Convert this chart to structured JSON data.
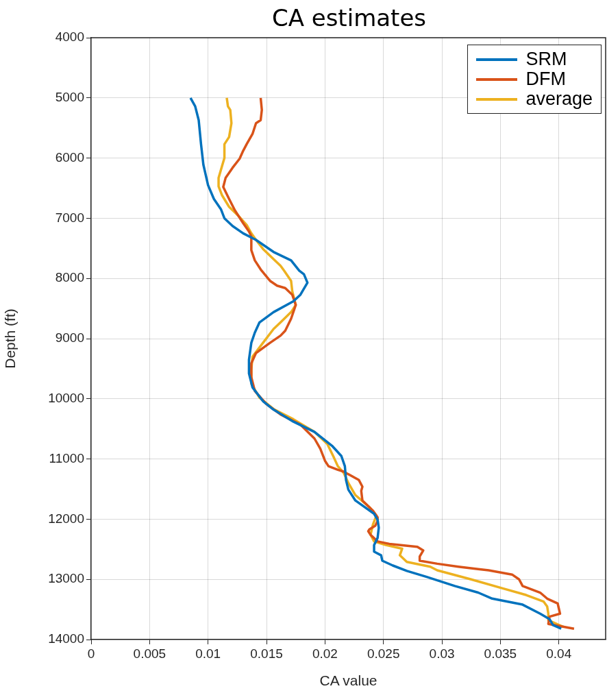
{
  "chart_data": {
    "type": "line",
    "title": "CA estimates",
    "xlabel": "CA value",
    "ylabel": "Depth (ft)",
    "xlim": [
      0,
      0.044
    ],
    "xticks": [
      0,
      0.005,
      0.01,
      0.015,
      0.02,
      0.025,
      0.03,
      0.035,
      0.04
    ],
    "ylim": [
      14000,
      4000
    ],
    "yticks": [
      4000,
      5000,
      6000,
      7000,
      8000,
      9000,
      10000,
      11000,
      12000,
      13000,
      14000
    ],
    "grid": true,
    "legend": "top right",
    "marker": "none",
    "line_style": "solid",
    "series": [
      {
        "name": "SRM",
        "color": "#0072bd",
        "x": [
          0.0085,
          0.0089,
          0.0092,
          0.0094,
          0.0096,
          0.01,
          0.0105,
          0.0111,
          0.0114,
          0.0121,
          0.013,
          0.0141,
          0.0156,
          0.0171,
          0.0178,
          0.0182,
          0.0185,
          0.0179,
          0.0173,
          0.0156,
          0.0144,
          0.014,
          0.0137,
          0.0135,
          0.0135,
          0.0138,
          0.0147,
          0.0156,
          0.0173,
          0.0191,
          0.0206,
          0.0214,
          0.0217,
          0.0218,
          0.022,
          0.0226,
          0.0242,
          0.0245,
          0.0246,
          0.0245,
          0.0242,
          0.0242,
          0.0248,
          0.0249,
          0.0258,
          0.027,
          0.0287,
          0.0311,
          0.0331,
          0.0343,
          0.0369,
          0.0384,
          0.0392,
          0.0395,
          0.0402
        ],
        "values": [
          5000,
          5140,
          5370,
          5770,
          6110,
          6450,
          6680,
          6850,
          7000,
          7130,
          7250,
          7360,
          7560,
          7700,
          7870,
          7930,
          8070,
          8270,
          8380,
          8560,
          8730,
          8900,
          9070,
          9350,
          9580,
          9810,
          10040,
          10180,
          10380,
          10550,
          10780,
          10950,
          11120,
          11350,
          11510,
          11690,
          11910,
          12010,
          12140,
          12310,
          12430,
          12540,
          12600,
          12690,
          12770,
          12860,
          12960,
          13110,
          13220,
          13320,
          13420,
          13570,
          13660,
          13760,
          13820
        ]
      },
      {
        "name": "DFM",
        "color": "#d95319",
        "x": [
          0.0145,
          0.0146,
          0.0145,
          0.0141,
          0.0138,
          0.0133,
          0.013,
          0.0127,
          0.0121,
          0.0115,
          0.0113,
          0.0118,
          0.0123,
          0.013,
          0.0135,
          0.0137,
          0.0137,
          0.014,
          0.0145,
          0.0153,
          0.0159,
          0.0166,
          0.0172,
          0.0175,
          0.0171,
          0.0166,
          0.0162,
          0.0153,
          0.0141,
          0.0137,
          0.0137,
          0.014,
          0.015,
          0.0162,
          0.0179,
          0.0191,
          0.0196,
          0.02,
          0.0203,
          0.0211,
          0.0216,
          0.0229,
          0.0232,
          0.0231,
          0.0232,
          0.0241,
          0.0245,
          0.0245,
          0.0243,
          0.0238,
          0.0237,
          0.0239,
          0.0245,
          0.0255,
          0.0279,
          0.0284,
          0.0281,
          0.0281,
          0.0296,
          0.0314,
          0.0331,
          0.034,
          0.036,
          0.0366,
          0.0369,
          0.0384,
          0.039,
          0.0399,
          0.0401,
          0.0392,
          0.0391,
          0.0413
        ],
        "values": [
          5000,
          5200,
          5370,
          5420,
          5600,
          5770,
          5880,
          6010,
          6160,
          6330,
          6480,
          6680,
          6870,
          7080,
          7220,
          7300,
          7530,
          7700,
          7850,
          8040,
          8120,
          8160,
          8270,
          8440,
          8670,
          8870,
          8950,
          9070,
          9240,
          9410,
          9640,
          9870,
          10090,
          10260,
          10430,
          10660,
          10830,
          11030,
          11120,
          11180,
          11210,
          11350,
          11460,
          11530,
          11690,
          11860,
          11970,
          12030,
          12110,
          12170,
          12200,
          12260,
          12370,
          12410,
          12460,
          12520,
          12620,
          12690,
          12740,
          12790,
          12830,
          12850,
          12920,
          13000,
          13110,
          13220,
          13320,
          13400,
          13570,
          13620,
          13740,
          13820
        ]
      },
      {
        "name": "average",
        "color": "#edb120",
        "x": [
          0.0116,
          0.0117,
          0.0119,
          0.012,
          0.0118,
          0.0114,
          0.0114,
          0.0112,
          0.0109,
          0.0109,
          0.0112,
          0.0118,
          0.0126,
          0.0133,
          0.0137,
          0.0141,
          0.0147,
          0.0156,
          0.0162,
          0.0165,
          0.0171,
          0.0172,
          0.0175,
          0.0171,
          0.0162,
          0.0156,
          0.0147,
          0.0138,
          0.0137,
          0.0137,
          0.0144,
          0.0156,
          0.0173,
          0.0191,
          0.0202,
          0.0207,
          0.0211,
          0.0216,
          0.022,
          0.0226,
          0.0238,
          0.0244,
          0.0241,
          0.0239,
          0.0242,
          0.0252,
          0.0266,
          0.0264,
          0.027,
          0.029,
          0.0296,
          0.0325,
          0.0352,
          0.0372,
          0.0387,
          0.039,
          0.0391,
          0.0391,
          0.0404
        ],
        "values": [
          5000,
          5140,
          5200,
          5420,
          5650,
          5770,
          6000,
          6130,
          6330,
          6470,
          6620,
          6810,
          6960,
          7110,
          7250,
          7360,
          7510,
          7680,
          7790,
          7870,
          8040,
          8210,
          8440,
          8560,
          8730,
          8840,
          9070,
          9300,
          9520,
          9750,
          9980,
          10170,
          10340,
          10550,
          10750,
          10950,
          11120,
          11230,
          11400,
          11600,
          11800,
          11940,
          12090,
          12260,
          12370,
          12430,
          12490,
          12600,
          12710,
          12790,
          12850,
          13000,
          13150,
          13260,
          13370,
          13450,
          13570,
          13680,
          13790
        ]
      }
    ]
  }
}
